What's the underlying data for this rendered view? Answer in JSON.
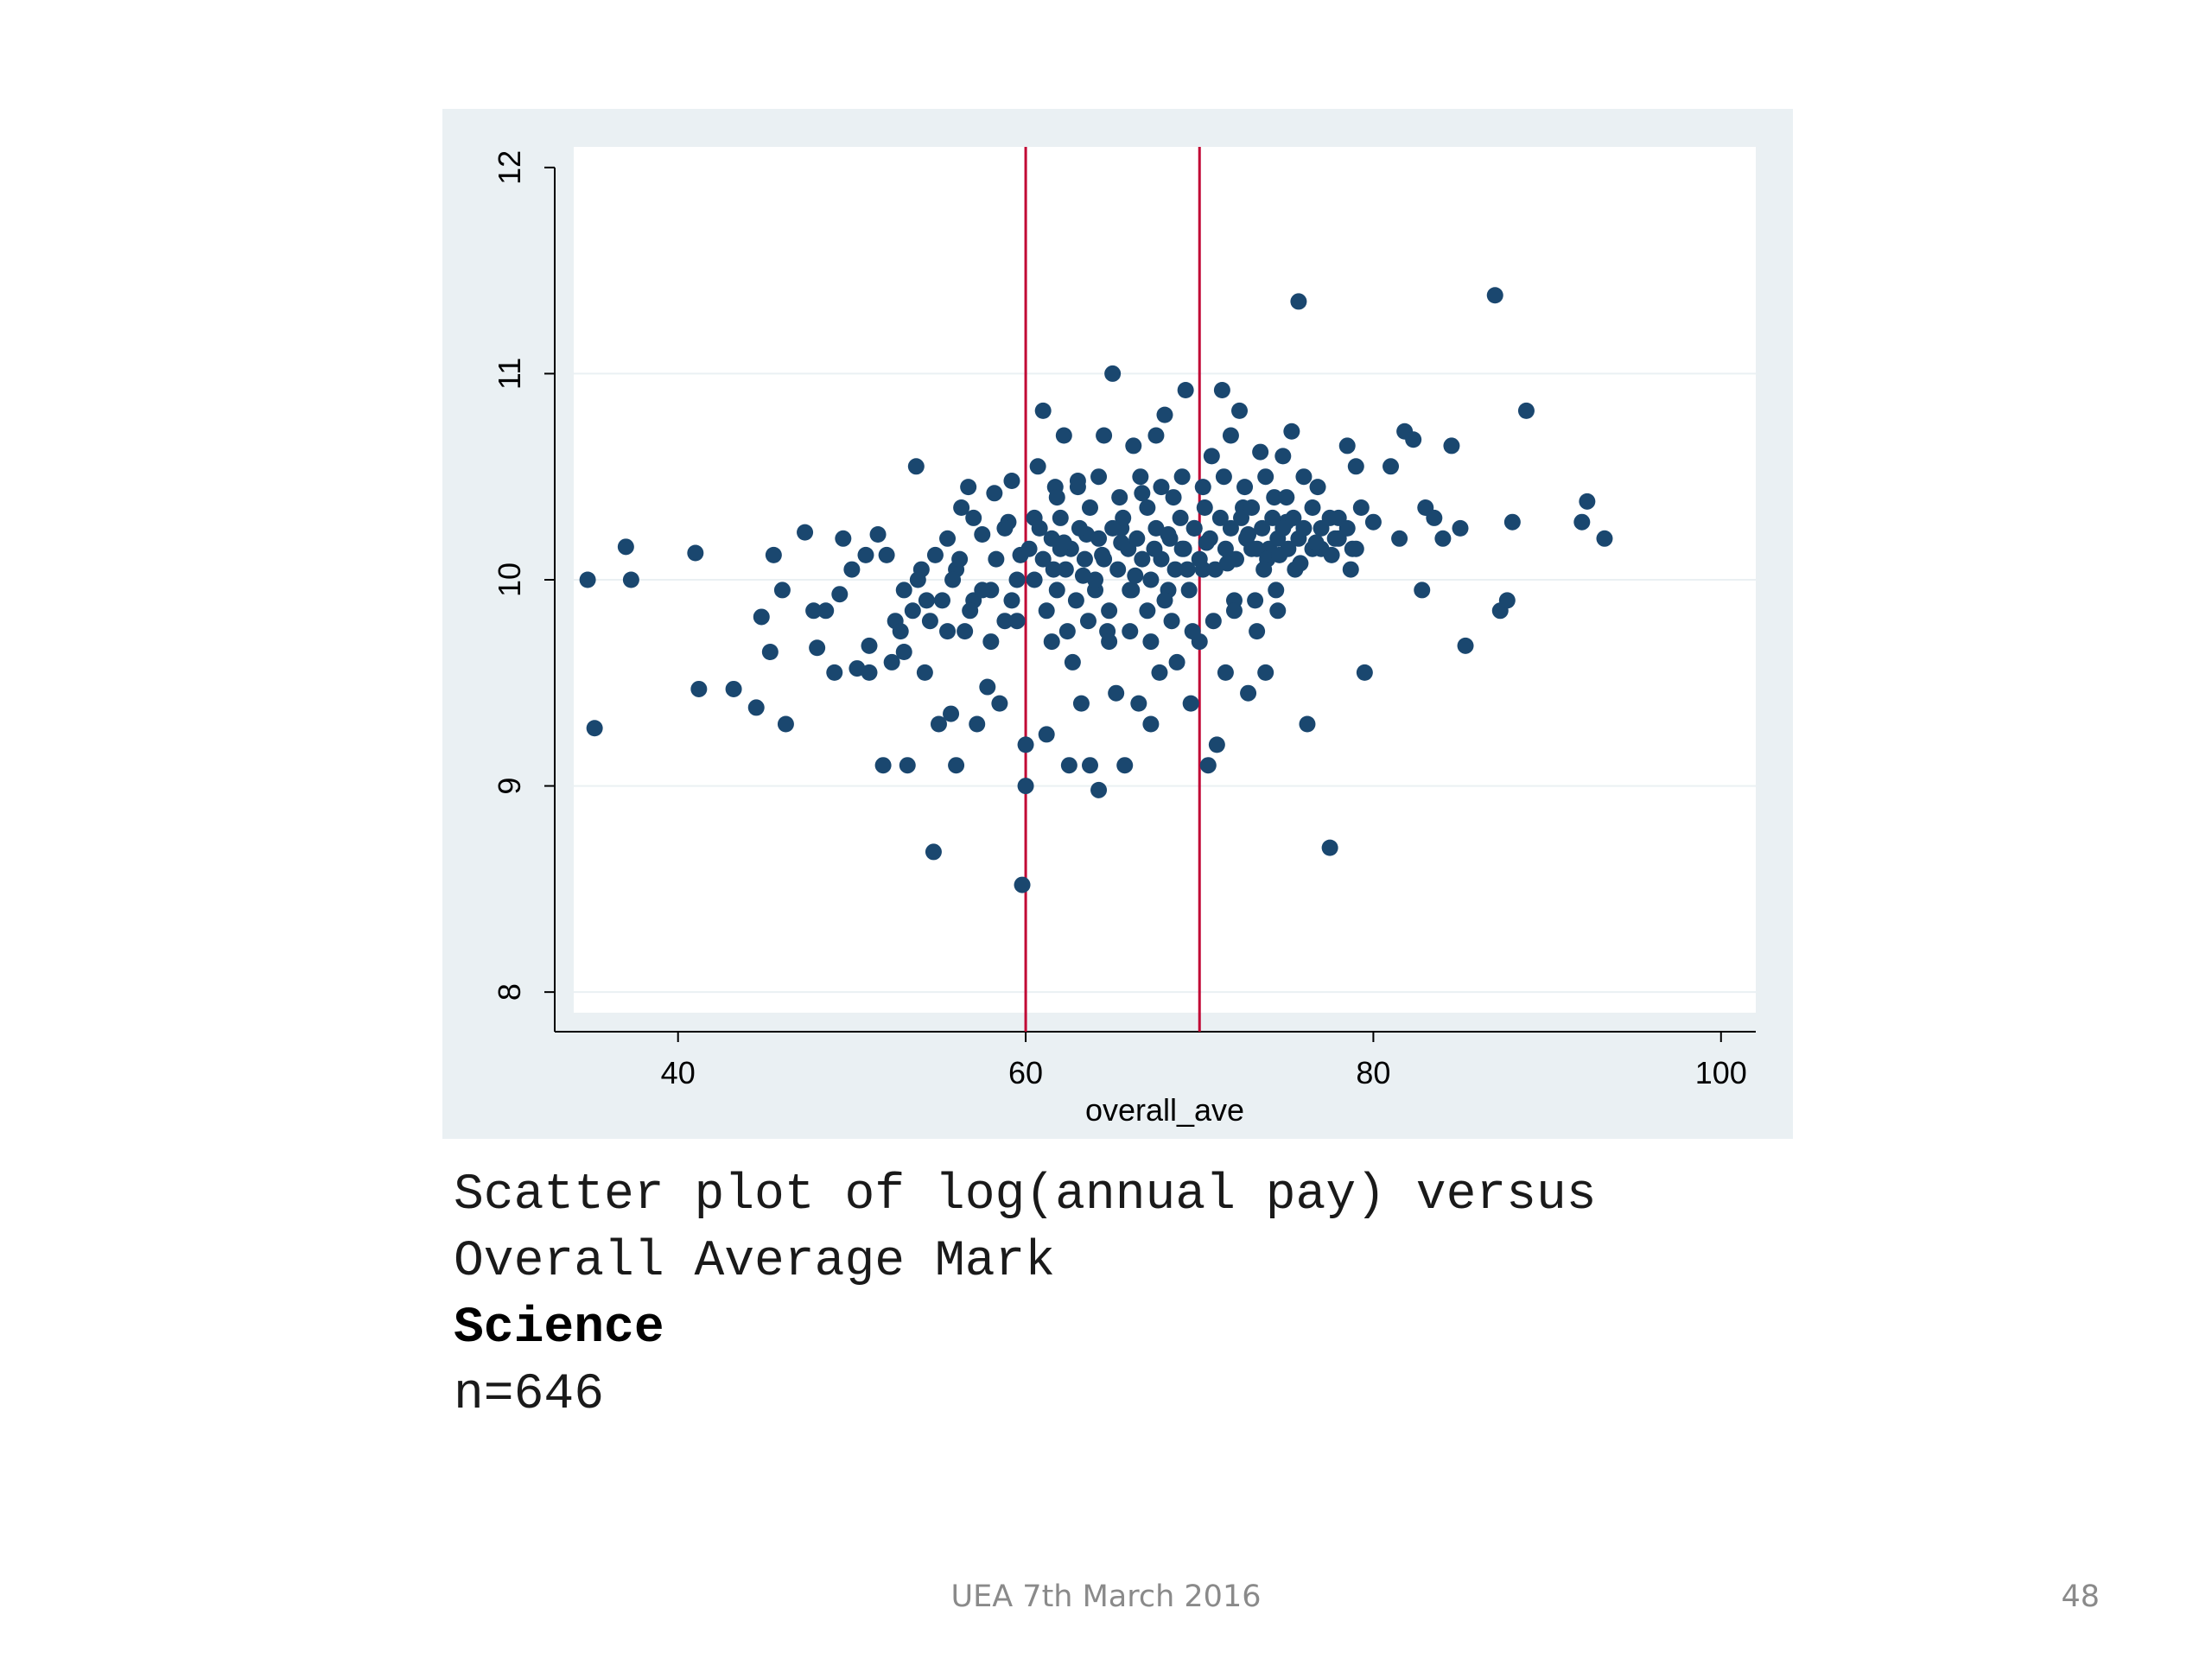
{
  "chart_data": {
    "type": "scatter",
    "xlabel": "overall_ave",
    "ylabel": "",
    "xlim": [
      34,
      102
    ],
    "ylim": [
      7.9,
      12.1
    ],
    "xticks": [
      40,
      60,
      80,
      100
    ],
    "yticks": [
      8,
      9,
      10,
      11,
      12
    ],
    "grid": true,
    "vlines": [
      60,
      70
    ],
    "colors": {
      "marker": "#1a476f",
      "vline": "#c10534",
      "panel": "#eaf0f3",
      "plot": "#ffffff",
      "grid": "#eaf0f3"
    },
    "points": [
      [
        34.8,
        10.0
      ],
      [
        35.2,
        9.28
      ],
      [
        37.0,
        10.16
      ],
      [
        37.3,
        10.0
      ],
      [
        41.0,
        10.13
      ],
      [
        41.2,
        9.47
      ],
      [
        43.2,
        9.47
      ],
      [
        44.5,
        9.38
      ],
      [
        44.8,
        9.82
      ],
      [
        45.3,
        9.65
      ],
      [
        45.5,
        10.12
      ],
      [
        46.0,
        9.95
      ],
      [
        46.2,
        9.3
      ],
      [
        47.3,
        10.23
      ],
      [
        47.8,
        9.85
      ],
      [
        48.0,
        9.67
      ],
      [
        48.5,
        9.85
      ],
      [
        49.0,
        9.55
      ],
      [
        49.3,
        9.93
      ],
      [
        49.5,
        10.2
      ],
      [
        50.0,
        10.05
      ],
      [
        50.3,
        9.57
      ],
      [
        50.8,
        10.12
      ],
      [
        51.0,
        9.68
      ],
      [
        51.0,
        9.55
      ],
      [
        51.5,
        10.22
      ],
      [
        51.8,
        9.1
      ],
      [
        52.0,
        10.12
      ],
      [
        52.3,
        9.6
      ],
      [
        52.5,
        9.8
      ],
      [
        53.0,
        9.95
      ],
      [
        53.0,
        9.65
      ],
      [
        53.2,
        9.1
      ],
      [
        53.5,
        9.85
      ],
      [
        53.7,
        10.55
      ],
      [
        54.0,
        10.05
      ],
      [
        54.2,
        9.55
      ],
      [
        54.5,
        9.8
      ],
      [
        54.7,
        8.68
      ],
      [
        54.8,
        10.12
      ],
      [
        55.0,
        9.3
      ],
      [
        55.2,
        9.9
      ],
      [
        55.5,
        9.75
      ],
      [
        55.7,
        9.35
      ],
      [
        56.0,
        10.05
      ],
      [
        56.0,
        9.1
      ],
      [
        56.3,
        10.35
      ],
      [
        56.5,
        9.75
      ],
      [
        56.7,
        10.45
      ],
      [
        57.0,
        9.9
      ],
      [
        57.2,
        9.3
      ],
      [
        57.5,
        10.22
      ],
      [
        57.8,
        9.48
      ],
      [
        58.0,
        9.95
      ],
      [
        58.2,
        10.42
      ],
      [
        58.5,
        9.4
      ],
      [
        58.8,
        9.8
      ],
      [
        59.0,
        10.28
      ],
      [
        59.2,
        10.48
      ],
      [
        59.5,
        9.8
      ],
      [
        59.7,
        10.12
      ],
      [
        59.8,
        8.52
      ],
      [
        60.0,
        9.0
      ],
      [
        60.0,
        9.2
      ],
      [
        60.2,
        10.15
      ],
      [
        60.5,
        10.3
      ],
      [
        60.7,
        10.55
      ],
      [
        61.0,
        10.82
      ],
      [
        61.2,
        9.25
      ],
      [
        61.5,
        9.7
      ],
      [
        61.7,
        10.45
      ],
      [
        62.0,
        10.15
      ],
      [
        62.2,
        10.7
      ],
      [
        62.5,
        9.1
      ],
      [
        62.7,
        9.6
      ],
      [
        63.0,
        10.48
      ],
      [
        63.2,
        9.4
      ],
      [
        63.5,
        10.22
      ],
      [
        63.7,
        9.1
      ],
      [
        64.0,
        9.95
      ],
      [
        64.2,
        8.98
      ],
      [
        64.5,
        10.7
      ],
      [
        64.7,
        9.75
      ],
      [
        65.0,
        11.0
      ],
      [
        65.2,
        9.45
      ],
      [
        65.5,
        10.25
      ],
      [
        65.7,
        9.1
      ],
      [
        66.0,
        9.95
      ],
      [
        66.2,
        10.65
      ],
      [
        66.5,
        9.4
      ],
      [
        66.7,
        10.42
      ],
      [
        67.0,
        9.85
      ],
      [
        67.2,
        9.3
      ],
      [
        67.5,
        10.7
      ],
      [
        67.7,
        9.55
      ],
      [
        68.0,
        10.8
      ],
      [
        68.2,
        9.95
      ],
      [
        68.5,
        10.4
      ],
      [
        68.7,
        9.6
      ],
      [
        69.0,
        10.15
      ],
      [
        69.2,
        10.92
      ],
      [
        69.5,
        9.4
      ],
      [
        69.7,
        10.25
      ],
      [
        70.0,
        9.7
      ],
      [
        70.2,
        10.05
      ],
      [
        70.5,
        9.1
      ],
      [
        70.7,
        10.6
      ],
      [
        71.0,
        9.2
      ],
      [
        71.3,
        10.92
      ],
      [
        71.5,
        9.55
      ],
      [
        71.8,
        10.7
      ],
      [
        72.0,
        9.9
      ],
      [
        72.3,
        10.82
      ],
      [
        72.5,
        10.35
      ],
      [
        72.8,
        9.45
      ],
      [
        73.0,
        10.15
      ],
      [
        73.3,
        9.75
      ],
      [
        73.5,
        10.62
      ],
      [
        73.8,
        9.55
      ],
      [
        74.0,
        10.15
      ],
      [
        74.3,
        10.4
      ],
      [
        74.5,
        9.85
      ],
      [
        74.8,
        10.6
      ],
      [
        75.0,
        10.28
      ],
      [
        75.3,
        10.72
      ],
      [
        75.5,
        10.05
      ],
      [
        75.7,
        11.35
      ],
      [
        76.0,
        10.5
      ],
      [
        76.2,
        9.3
      ],
      [
        76.5,
        10.15
      ],
      [
        76.8,
        10.45
      ],
      [
        77.0,
        10.25
      ],
      [
        77.5,
        8.7
      ],
      [
        77.8,
        10.2
      ],
      [
        78.0,
        10.3
      ],
      [
        78.5,
        10.65
      ],
      [
        78.8,
        10.15
      ],
      [
        79.0,
        10.55
      ],
      [
        79.3,
        10.35
      ],
      [
        79.5,
        9.55
      ],
      [
        80.0,
        10.28
      ],
      [
        81.0,
        10.55
      ],
      [
        81.5,
        10.2
      ],
      [
        81.8,
        10.72
      ],
      [
        82.3,
        10.68
      ],
      [
        82.8,
        9.95
      ],
      [
        83.0,
        10.35
      ],
      [
        83.5,
        10.3
      ],
      [
        84.0,
        10.2
      ],
      [
        84.5,
        10.65
      ],
      [
        85.0,
        10.25
      ],
      [
        85.3,
        9.68
      ],
      [
        87.0,
        11.38
      ],
      [
        87.3,
        9.85
      ],
      [
        87.7,
        9.9
      ],
      [
        88.0,
        10.28
      ],
      [
        88.8,
        10.82
      ],
      [
        92.0,
        10.28
      ],
      [
        92.3,
        10.38
      ],
      [
        93.3,
        10.2
      ],
      [
        60.5,
        10.0
      ],
      [
        61.0,
        10.1
      ],
      [
        61.5,
        10.2
      ],
      [
        61.8,
        9.95
      ],
      [
        62.0,
        10.3
      ],
      [
        62.3,
        10.05
      ],
      [
        62.6,
        10.15
      ],
      [
        62.9,
        9.9
      ],
      [
        63.1,
        10.25
      ],
      [
        63.4,
        10.1
      ],
      [
        63.7,
        10.35
      ],
      [
        64.0,
        10.0
      ],
      [
        64.2,
        10.2
      ],
      [
        64.5,
        10.1
      ],
      [
        64.8,
        9.85
      ],
      [
        65.0,
        10.25
      ],
      [
        65.3,
        10.05
      ],
      [
        65.6,
        10.3
      ],
      [
        65.9,
        10.15
      ],
      [
        66.1,
        9.95
      ],
      [
        66.4,
        10.2
      ],
      [
        66.7,
        10.1
      ],
      [
        67.0,
        10.35
      ],
      [
        67.2,
        10.0
      ],
      [
        67.5,
        10.25
      ],
      [
        67.8,
        10.1
      ],
      [
        68.0,
        9.9
      ],
      [
        68.3,
        10.2
      ],
      [
        68.6,
        10.05
      ],
      [
        68.9,
        10.3
      ],
      [
        69.1,
        10.15
      ],
      [
        69.4,
        9.95
      ],
      [
        69.7,
        10.25
      ],
      [
        70.0,
        10.1
      ],
      [
        70.3,
        10.35
      ],
      [
        70.6,
        10.2
      ],
      [
        70.9,
        10.05
      ],
      [
        71.2,
        10.3
      ],
      [
        71.5,
        10.15
      ],
      [
        71.8,
        10.25
      ],
      [
        72.1,
        10.1
      ],
      [
        72.4,
        10.3
      ],
      [
        72.7,
        10.2
      ],
      [
        73.0,
        10.35
      ],
      [
        73.3,
        10.15
      ],
      [
        73.6,
        10.25
      ],
      [
        73.9,
        10.1
      ],
      [
        74.2,
        10.3
      ],
      [
        74.5,
        10.2
      ],
      [
        74.8,
        10.25
      ],
      [
        75.1,
        10.15
      ],
      [
        75.4,
        10.3
      ],
      [
        75.7,
        10.2
      ],
      [
        76.0,
        10.25
      ],
      [
        76.5,
        10.35
      ],
      [
        77.0,
        10.15
      ],
      [
        77.5,
        10.3
      ],
      [
        78.0,
        10.2
      ],
      [
        78.5,
        10.25
      ],
      [
        79.0,
        10.15
      ],
      [
        61.2,
        9.85
      ],
      [
        61.8,
        10.4
      ],
      [
        62.4,
        9.75
      ],
      [
        63.0,
        10.45
      ],
      [
        63.6,
        9.8
      ],
      [
        64.2,
        10.5
      ],
      [
        64.8,
        9.7
      ],
      [
        65.4,
        10.4
      ],
      [
        66.0,
        9.75
      ],
      [
        66.6,
        10.5
      ],
      [
        67.2,
        9.7
      ],
      [
        67.8,
        10.45
      ],
      [
        68.4,
        9.8
      ],
      [
        69.0,
        10.5
      ],
      [
        69.6,
        9.75
      ],
      [
        70.2,
        10.45
      ],
      [
        70.8,
        9.8
      ],
      [
        71.4,
        10.5
      ],
      [
        72.0,
        9.85
      ],
      [
        72.6,
        10.45
      ],
      [
        73.2,
        9.9
      ],
      [
        73.8,
        10.5
      ],
      [
        74.4,
        9.95
      ],
      [
        75.0,
        10.4
      ],
      [
        60.8,
        10.25
      ],
      [
        61.6,
        10.05
      ],
      [
        62.2,
        10.18
      ],
      [
        63.3,
        10.02
      ],
      [
        64.4,
        10.12
      ],
      [
        65.5,
        10.18
      ],
      [
        66.3,
        10.02
      ],
      [
        67.4,
        10.15
      ],
      [
        68.2,
        10.22
      ],
      [
        69.3,
        10.05
      ],
      [
        70.4,
        10.18
      ],
      [
        71.6,
        10.08
      ],
      [
        72.8,
        10.22
      ],
      [
        73.7,
        10.05
      ],
      [
        74.6,
        10.12
      ],
      [
        75.8,
        10.08
      ],
      [
        76.7,
        10.18
      ],
      [
        77.6,
        10.12
      ],
      [
        78.7,
        10.05
      ],
      [
        57.5,
        9.95
      ],
      [
        58.3,
        10.1
      ],
      [
        59.2,
        9.9
      ],
      [
        58.8,
        10.25
      ],
      [
        57.0,
        10.3
      ],
      [
        56.2,
        10.1
      ],
      [
        55.5,
        10.2
      ],
      [
        54.3,
        9.9
      ],
      [
        53.8,
        10.0
      ],
      [
        52.8,
        9.75
      ],
      [
        58.0,
        9.7
      ],
      [
        59.5,
        10.0
      ],
      [
        56.8,
        9.85
      ],
      [
        55.8,
        10.0
      ]
    ]
  },
  "caption": {
    "line1": "Scatter plot of log(annual pay) versus",
    "line2": "Overall Average Mark",
    "line3": "Science",
    "line4": "n=646"
  },
  "footer": {
    "text": "UEA 7th March 2016",
    "page_number": "48"
  }
}
